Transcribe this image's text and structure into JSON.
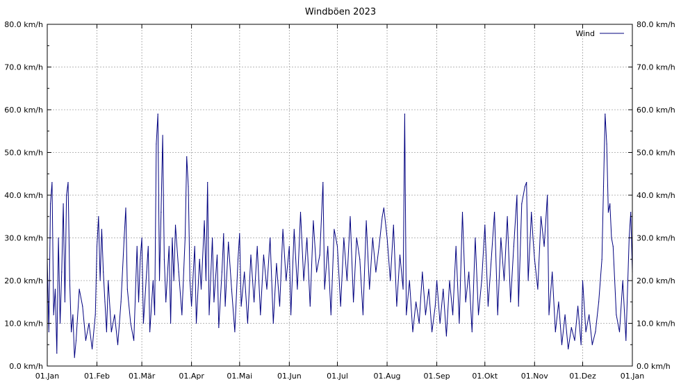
{
  "chart_data": {
    "type": "line",
    "title": "Windböen 2023",
    "ylim": [
      0,
      80
    ],
    "y_ticks": [
      0,
      10,
      20,
      30,
      40,
      50,
      60,
      70,
      80
    ],
    "y_tick_labels": [
      "0.0 km/h",
      "10.0 km/h",
      "20.0 km/h",
      "30.0 km/h",
      "40.0 km/h",
      "50.0 km/h",
      "60.0 km/h",
      "70.0 km/h",
      "80.0 km/h"
    ],
    "x_ticks": [
      "01.Jan",
      "01.Feb",
      "01.Mär",
      "01.Apr",
      "01.Mai",
      "01.Jun",
      "01.Jul",
      "01.Aug",
      "01.Sep",
      "01.Okt",
      "01.Nov",
      "01.Dez",
      "01.Jan"
    ],
    "x_tick_day_of_year": [
      0,
      31,
      59,
      90,
      120,
      151,
      181,
      212,
      243,
      273,
      304,
      334,
      365
    ],
    "grid": true,
    "legend_position": "top-right",
    "series": [
      {
        "name": "Wind",
        "color": "#00007f",
        "x_unit": "day of year",
        "points": [
          [
            0,
            25
          ],
          [
            1,
            8
          ],
          [
            2,
            38
          ],
          [
            3,
            43
          ],
          [
            4,
            12
          ],
          [
            5,
            18
          ],
          [
            6,
            3
          ],
          [
            7,
            30
          ],
          [
            8,
            10
          ],
          [
            9,
            22
          ],
          [
            10,
            38
          ],
          [
            11,
            15
          ],
          [
            12,
            40
          ],
          [
            13,
            43
          ],
          [
            14,
            20
          ],
          [
            15,
            8
          ],
          [
            16,
            12
          ],
          [
            17,
            2
          ],
          [
            18,
            6
          ],
          [
            20,
            18
          ],
          [
            22,
            14
          ],
          [
            24,
            6
          ],
          [
            26,
            10
          ],
          [
            28,
            4
          ],
          [
            30,
            12
          ],
          [
            31,
            28
          ],
          [
            32,
            35
          ],
          [
            33,
            20
          ],
          [
            34,
            32
          ],
          [
            35,
            22
          ],
          [
            36,
            15
          ],
          [
            37,
            8
          ],
          [
            38,
            20
          ],
          [
            40,
            8
          ],
          [
            42,
            12
          ],
          [
            44,
            5
          ],
          [
            46,
            15
          ],
          [
            48,
            30
          ],
          [
            49,
            37
          ],
          [
            50,
            18
          ],
          [
            52,
            10
          ],
          [
            54,
            6
          ],
          [
            56,
            28
          ],
          [
            57,
            15
          ],
          [
            58,
            25
          ],
          [
            59,
            30
          ],
          [
            60,
            10
          ],
          [
            62,
            22
          ],
          [
            63,
            28
          ],
          [
            64,
            8
          ],
          [
            66,
            20
          ],
          [
            67,
            12
          ],
          [
            68,
            52
          ],
          [
            69,
            59
          ],
          [
            70,
            20
          ],
          [
            71,
            36
          ],
          [
            72,
            54
          ],
          [
            73,
            25
          ],
          [
            74,
            15
          ],
          [
            76,
            28
          ],
          [
            77,
            10
          ],
          [
            78,
            30
          ],
          [
            79,
            20
          ],
          [
            80,
            33
          ],
          [
            82,
            22
          ],
          [
            84,
            12
          ],
          [
            86,
            30
          ],
          [
            87,
            49
          ],
          [
            88,
            42
          ],
          [
            89,
            20
          ],
          [
            90,
            14
          ],
          [
            92,
            28
          ],
          [
            93,
            10
          ],
          [
            95,
            25
          ],
          [
            96,
            18
          ],
          [
            98,
            34
          ],
          [
            99,
            20
          ],
          [
            100,
            43
          ],
          [
            101,
            12
          ],
          [
            103,
            30
          ],
          [
            104,
            15
          ],
          [
            106,
            26
          ],
          [
            107,
            9
          ],
          [
            109,
            22
          ],
          [
            110,
            31
          ],
          [
            111,
            14
          ],
          [
            113,
            29
          ],
          [
            115,
            18
          ],
          [
            117,
            8
          ],
          [
            119,
            25
          ],
          [
            120,
            31
          ],
          [
            121,
            14
          ],
          [
            123,
            22
          ],
          [
            125,
            10
          ],
          [
            127,
            26
          ],
          [
            129,
            15
          ],
          [
            131,
            28
          ],
          [
            133,
            12
          ],
          [
            135,
            26
          ],
          [
            137,
            18
          ],
          [
            139,
            30
          ],
          [
            141,
            10
          ],
          [
            143,
            24
          ],
          [
            145,
            14
          ],
          [
            147,
            32
          ],
          [
            149,
            20
          ],
          [
            151,
            28
          ],
          [
            152,
            12
          ],
          [
            154,
            32
          ],
          [
            156,
            18
          ],
          [
            158,
            36
          ],
          [
            160,
            20
          ],
          [
            162,
            30
          ],
          [
            164,
            14
          ],
          [
            166,
            34
          ],
          [
            168,
            22
          ],
          [
            170,
            26
          ],
          [
            172,
            43
          ],
          [
            173,
            18
          ],
          [
            175,
            28
          ],
          [
            177,
            12
          ],
          [
            179,
            32
          ],
          [
            181,
            28
          ],
          [
            183,
            14
          ],
          [
            185,
            30
          ],
          [
            187,
            20
          ],
          [
            189,
            35
          ],
          [
            191,
            15
          ],
          [
            193,
            30
          ],
          [
            195,
            25
          ],
          [
            197,
            12
          ],
          [
            199,
            34
          ],
          [
            201,
            18
          ],
          [
            203,
            30
          ],
          [
            205,
            22
          ],
          [
            207,
            28
          ],
          [
            209,
            35
          ],
          [
            210,
            37
          ],
          [
            212,
            30
          ],
          [
            214,
            20
          ],
          [
            216,
            33
          ],
          [
            218,
            14
          ],
          [
            220,
            26
          ],
          [
            222,
            18
          ],
          [
            223,
            59
          ],
          [
            224,
            12
          ],
          [
            226,
            20
          ],
          [
            228,
            8
          ],
          [
            230,
            15
          ],
          [
            232,
            10
          ],
          [
            234,
            22
          ],
          [
            236,
            12
          ],
          [
            238,
            18
          ],
          [
            240,
            8
          ],
          [
            242,
            14
          ],
          [
            243,
            20
          ],
          [
            245,
            10
          ],
          [
            247,
            18
          ],
          [
            249,
            7
          ],
          [
            251,
            20
          ],
          [
            253,
            12
          ],
          [
            255,
            28
          ],
          [
            257,
            10
          ],
          [
            259,
            36
          ],
          [
            261,
            15
          ],
          [
            263,
            22
          ],
          [
            265,
            8
          ],
          [
            267,
            30
          ],
          [
            269,
            12
          ],
          [
            271,
            20
          ],
          [
            273,
            33
          ],
          [
            275,
            14
          ],
          [
            277,
            25
          ],
          [
            279,
            36
          ],
          [
            281,
            12
          ],
          [
            283,
            30
          ],
          [
            285,
            20
          ],
          [
            287,
            35
          ],
          [
            289,
            15
          ],
          [
            291,
            28
          ],
          [
            293,
            40
          ],
          [
            294,
            14
          ],
          [
            296,
            38
          ],
          [
            298,
            42
          ],
          [
            299,
            43
          ],
          [
            300,
            20
          ],
          [
            302,
            36
          ],
          [
            303,
            30
          ],
          [
            304,
            25
          ],
          [
            306,
            18
          ],
          [
            308,
            35
          ],
          [
            310,
            28
          ],
          [
            312,
            40
          ],
          [
            313,
            12
          ],
          [
            315,
            22
          ],
          [
            317,
            8
          ],
          [
            319,
            15
          ],
          [
            321,
            5
          ],
          [
            323,
            12
          ],
          [
            325,
            4
          ],
          [
            327,
            9
          ],
          [
            329,
            6
          ],
          [
            331,
            14
          ],
          [
            333,
            5
          ],
          [
            334,
            20
          ],
          [
            336,
            8
          ],
          [
            338,
            12
          ],
          [
            340,
            5
          ],
          [
            342,
            8
          ],
          [
            344,
            15
          ],
          [
            346,
            25
          ],
          [
            347,
            42
          ],
          [
            348,
            59
          ],
          [
            349,
            52
          ],
          [
            350,
            36
          ],
          [
            351,
            38
          ],
          [
            352,
            30
          ],
          [
            353,
            28
          ],
          [
            355,
            12
          ],
          [
            357,
            8
          ],
          [
            359,
            20
          ],
          [
            361,
            6
          ],
          [
            363,
            30
          ],
          [
            364,
            36
          ],
          [
            365,
            22
          ]
        ]
      }
    ]
  }
}
